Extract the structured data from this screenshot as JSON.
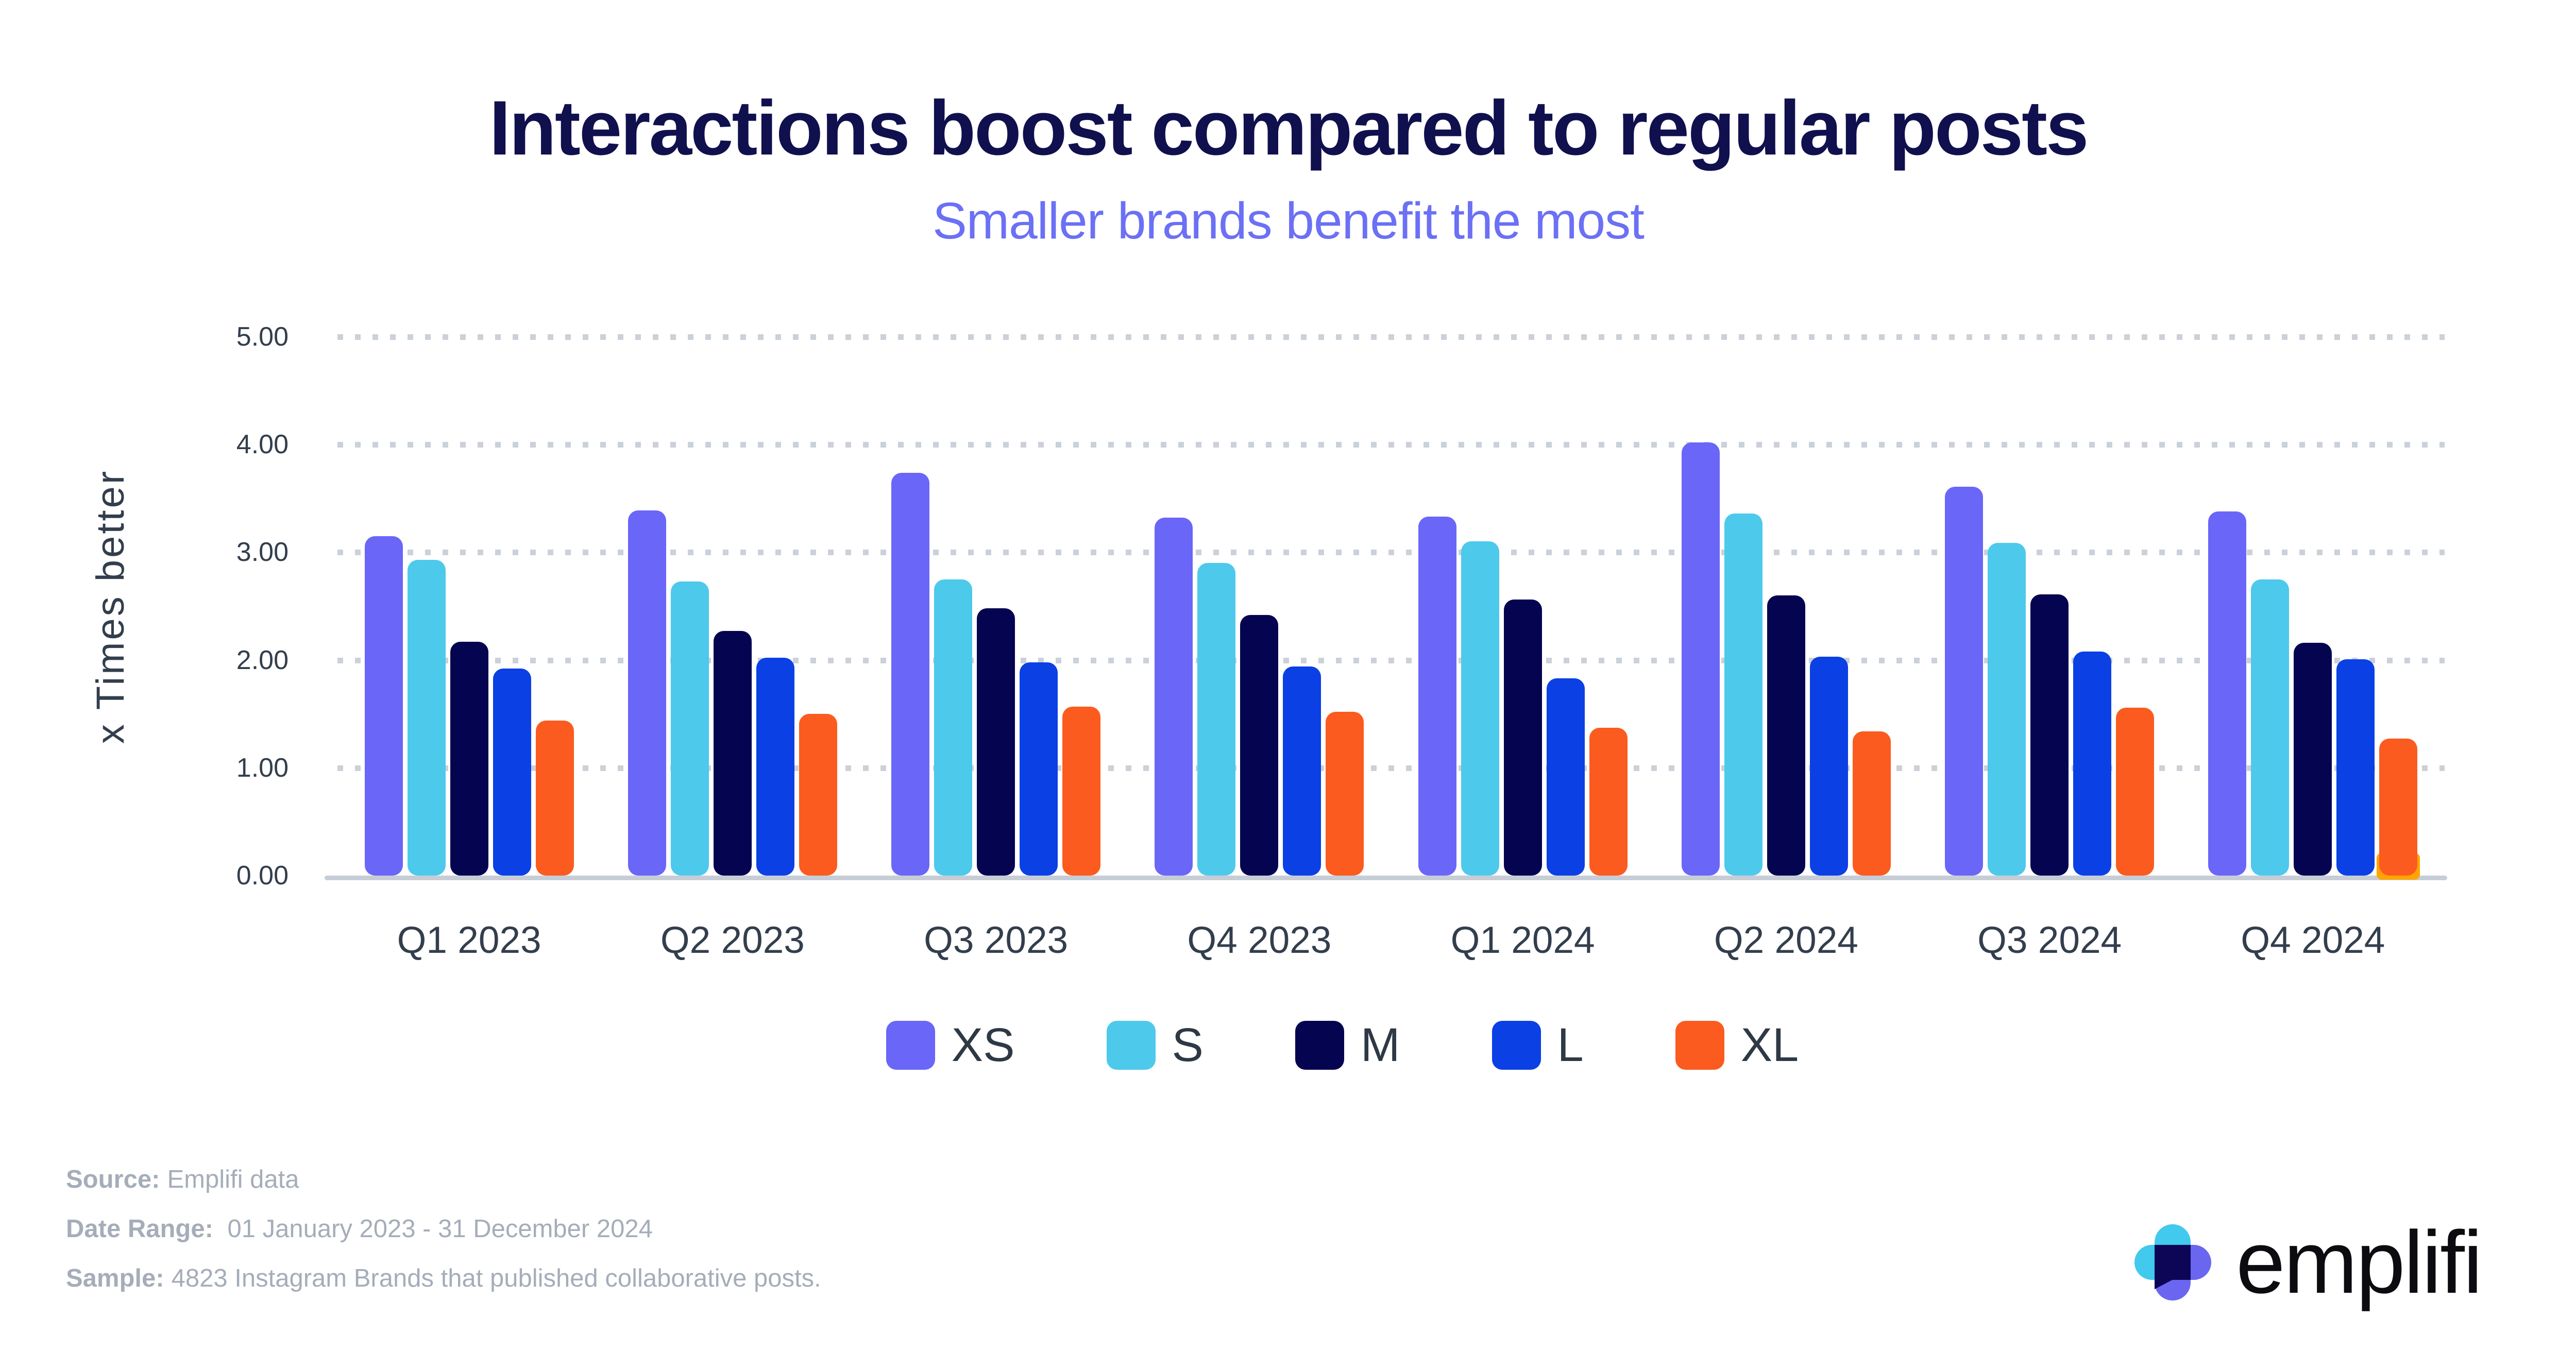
{
  "header": {
    "title": "Interactions boost compared to regular posts",
    "subtitle": "Smaller brands benefit the most"
  },
  "chart_data": {
    "type": "bar",
    "title": "Interactions boost compared to regular posts",
    "subtitle": "Smaller brands benefit the most",
    "xlabel": "",
    "ylabel": "x Times better",
    "ylim": [
      0,
      5
    ],
    "y_ticks": [
      "0.00",
      "1.00",
      "2.00",
      "3.00",
      "4.00",
      "5.00"
    ],
    "grid": "dotted horizontal gridlines",
    "legend_position": "bottom",
    "categories": [
      "Q1 2023",
      "Q2 2023",
      "Q3 2023",
      "Q4 2023",
      "Q1 2024",
      "Q2 2024",
      "Q3 2024",
      "Q4 2024"
    ],
    "series": [
      {
        "name": "XS",
        "color": "#6A66F8",
        "values": [
          3.15,
          3.39,
          3.74,
          3.32,
          3.33,
          4.02,
          3.61,
          3.38
        ]
      },
      {
        "name": "S",
        "color": "#4DC9EC",
        "values": [
          2.93,
          2.73,
          2.75,
          2.9,
          3.1,
          3.36,
          3.09,
          2.75
        ]
      },
      {
        "name": "M",
        "color": "#050450",
        "values": [
          2.17,
          2.27,
          2.48,
          2.42,
          2.56,
          2.6,
          2.61,
          2.16
        ]
      },
      {
        "name": "L",
        "color": "#0B40E4",
        "values": [
          1.92,
          2.02,
          1.98,
          1.94,
          1.83,
          2.03,
          2.08,
          2.01
        ]
      },
      {
        "name": "XL",
        "color": "#FB5B1E",
        "values": [
          1.44,
          1.5,
          1.57,
          1.52,
          1.37,
          1.34,
          1.56,
          1.27
        ]
      }
    ],
    "artifact": {
      "note": "amber sliver visible behind base of last XL bar",
      "category": "Q4 2024",
      "series": "XL",
      "color": "#FFA402"
    }
  },
  "footer": {
    "lines": [
      {
        "label": "Source:",
        "text": "Emplifi data"
      },
      {
        "label": "Date Range:",
        "text": " 01 January 2023 - 31 December 2024"
      },
      {
        "label": "Sample:",
        "text": "4823 Instagram Brands that published collaborative posts."
      }
    ]
  },
  "brand": {
    "wordmark": "emplifi"
  },
  "colors": {
    "title": "#10104E",
    "subtitle": "#6B70F5",
    "tick_text": "#333E4D",
    "gridline": "#CBD1D9",
    "axis_line": "#C7CDD7",
    "legend_text": "#2E3945",
    "footer_text": "#A5ADB9",
    "logo_cyan": "#41C9EE",
    "logo_violet": "#6A66F0",
    "logo_navy": "#0D0556"
  }
}
